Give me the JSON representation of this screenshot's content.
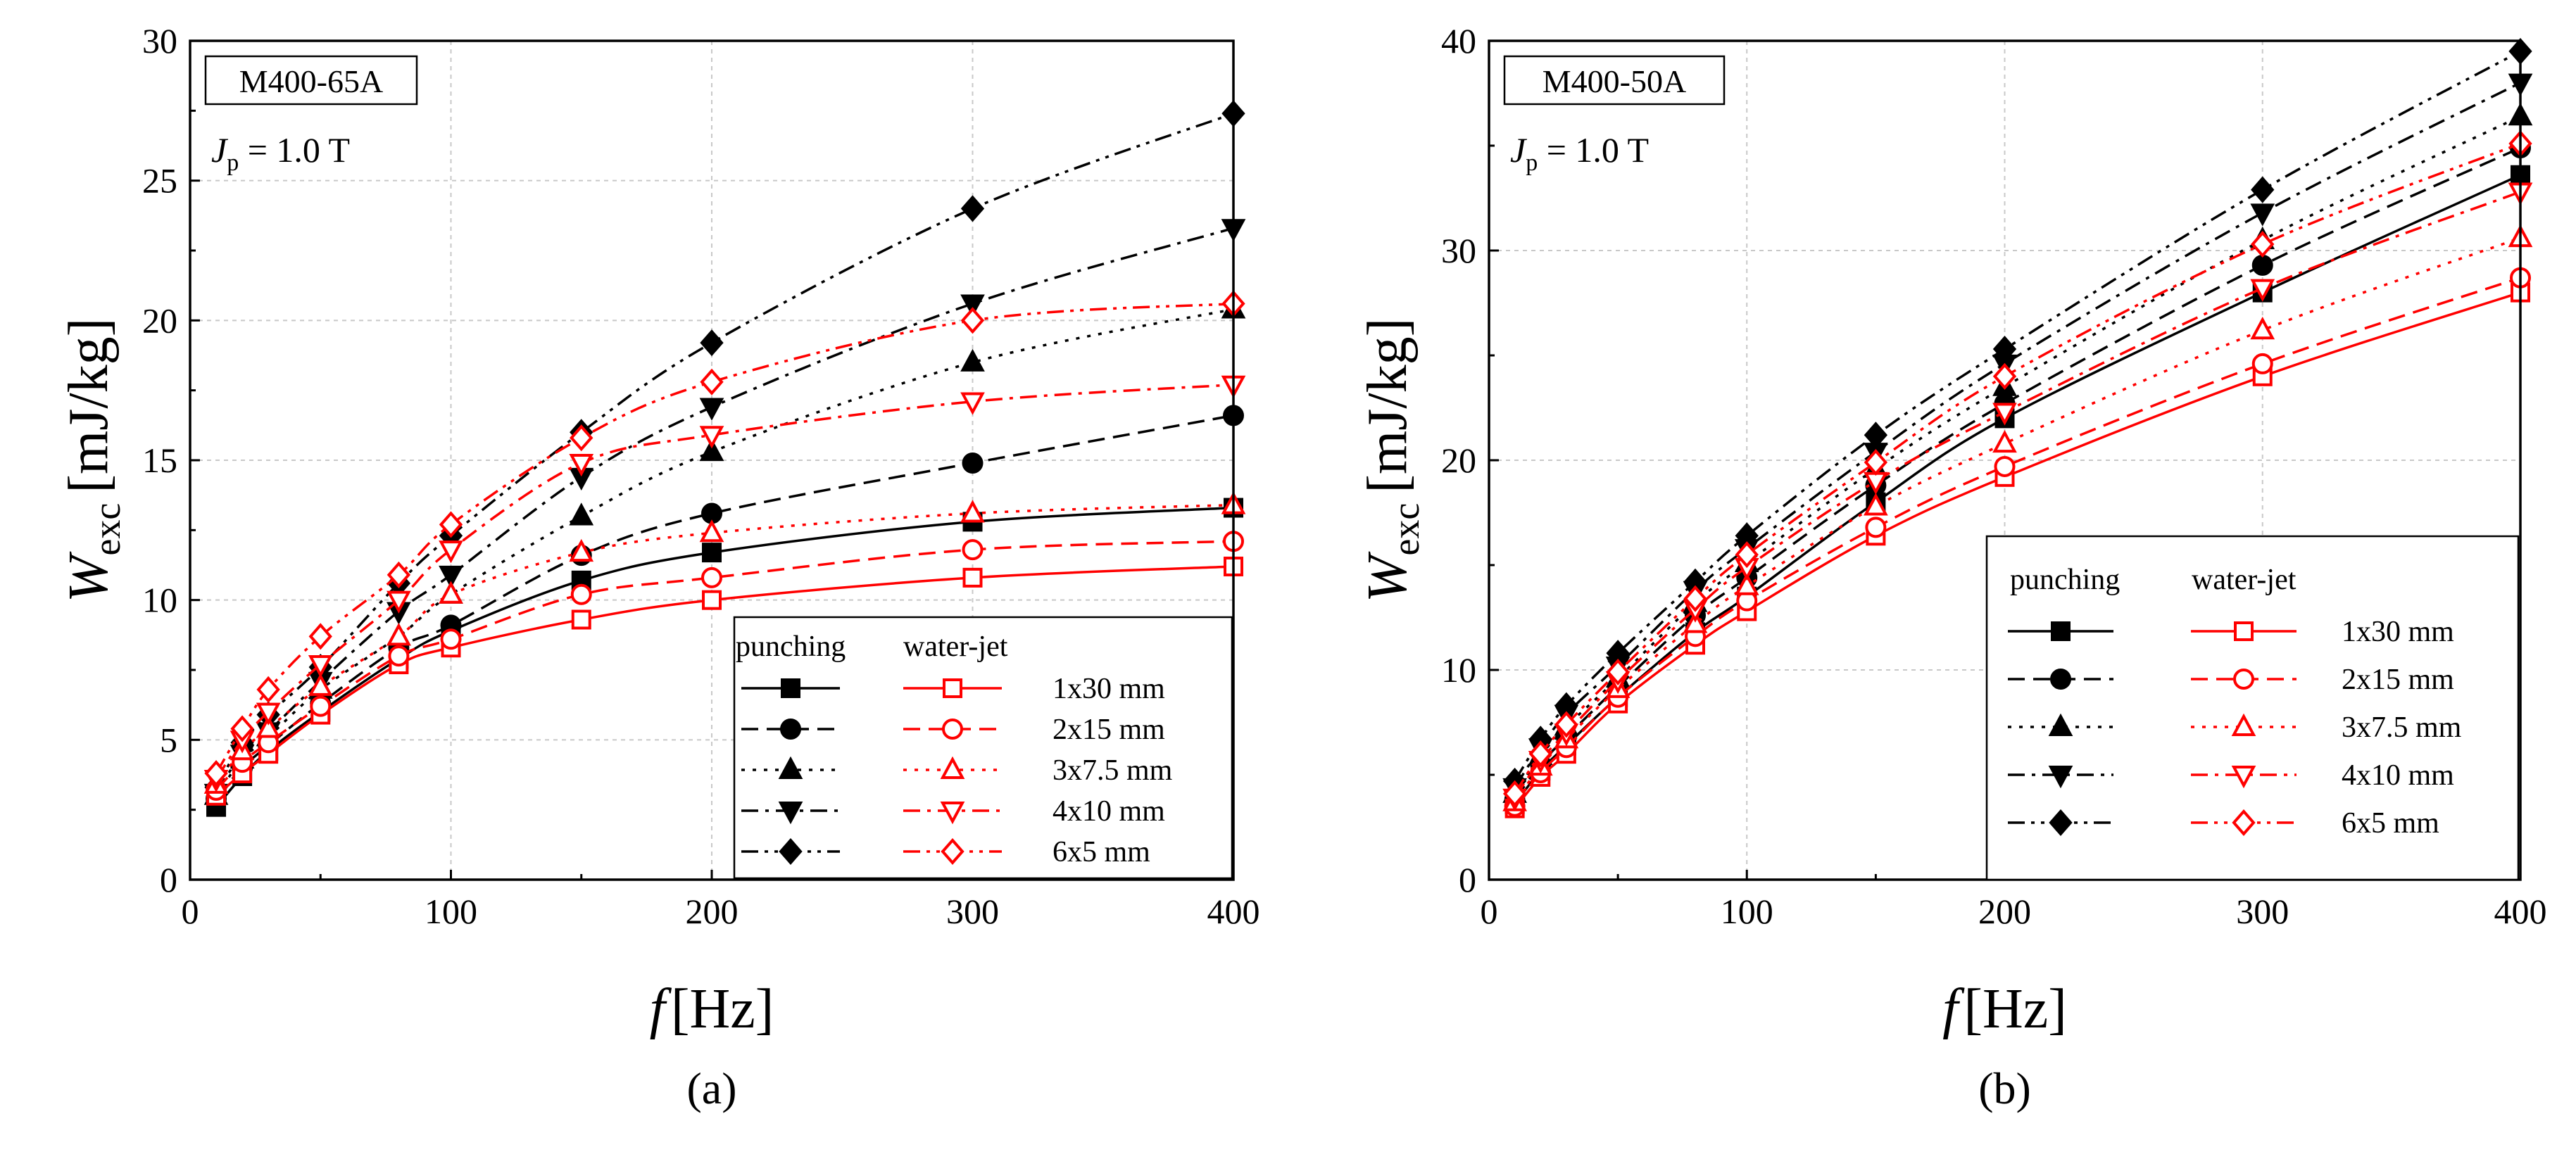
{
  "colors": {
    "punching": "#000000",
    "waterjet": "#ff0000",
    "grid": "#c8c8c8"
  },
  "legend": {
    "head_punching": "punching",
    "head_waterjet": "water-jet",
    "items": [
      {
        "label": "1x30 mm",
        "marker": "square",
        "dash": "solid"
      },
      {
        "label": "2x15 mm",
        "marker": "circle",
        "dash": "dash"
      },
      {
        "label": "3x7.5 mm",
        "marker": "triangle-up",
        "dash": "dot"
      },
      {
        "label": "4x10 mm",
        "marker": "triangle-down",
        "dash": "dashdot"
      },
      {
        "label": "6x5 mm",
        "marker": "diamond",
        "dash": "dashdotdot"
      }
    ]
  },
  "chart_data": [
    {
      "type": "line",
      "panel_label": "(a)",
      "material": "M400-65A",
      "jp_sym": "J",
      "jp_sub": "p",
      "jp_value": " = 1.0 T",
      "xlabel_sym": "f",
      "xlabel_unit": "[Hz]",
      "ylabel_sym": "W",
      "ylabel_sub": "exc",
      "ylabel_unit": "[mJ/kg]",
      "xlim": [
        0,
        400
      ],
      "ylim": [
        0,
        30
      ],
      "xticks": [
        0,
        100,
        200,
        300,
        400
      ],
      "yticks": [
        0,
        5,
        10,
        15,
        20,
        25,
        30
      ],
      "legend_position": "bottom-right",
      "x": [
        10,
        20,
        30,
        50,
        80,
        100,
        150,
        200,
        300,
        400
      ],
      "series": [
        {
          "name": "punching 1x30 mm",
          "method": "punching",
          "values": [
            2.6,
            3.7,
            4.6,
            6.0,
            7.9,
            8.9,
            10.7,
            11.7,
            12.8,
            13.3
          ]
        },
        {
          "name": "punching 2x15 mm",
          "method": "punching",
          "values": [
            2.9,
            4.0,
            4.8,
            6.3,
            8.3,
            9.1,
            11.6,
            13.1,
            14.9,
            16.6
          ]
        },
        {
          "name": "punching 3x7.5 mm",
          "method": "punching",
          "values": [
            3.0,
            4.3,
            5.1,
            6.8,
            8.7,
            10.2,
            13.0,
            15.3,
            18.5,
            20.4
          ]
        },
        {
          "name": "punching 4x10 mm",
          "method": "punching",
          "values": [
            3.1,
            4.5,
            5.3,
            7.1,
            9.6,
            10.9,
            14.4,
            16.9,
            20.6,
            23.3
          ]
        },
        {
          "name": "punching 6x5 mm",
          "method": "punching",
          "values": [
            3.3,
            4.9,
            5.9,
            7.6,
            10.6,
            12.3,
            16.0,
            19.2,
            24.0,
            27.4
          ]
        },
        {
          "name": "water-jet 1x30 mm",
          "method": "water-jet",
          "values": [
            3.0,
            3.8,
            4.5,
            5.9,
            7.7,
            8.3,
            9.3,
            10.0,
            10.8,
            11.2
          ]
        },
        {
          "name": "water-jet 2x15 mm",
          "method": "water-jet",
          "values": [
            3.2,
            4.2,
            4.9,
            6.2,
            8.0,
            8.6,
            10.2,
            10.8,
            11.8,
            12.1
          ]
        },
        {
          "name": "water-jet 3x7.5 mm",
          "method": "water-jet",
          "values": [
            3.4,
            4.6,
            5.4,
            6.9,
            8.7,
            10.2,
            11.7,
            12.4,
            13.1,
            13.4
          ]
        },
        {
          "name": "water-jet 4x10 mm",
          "method": "water-jet",
          "values": [
            3.6,
            5.0,
            6.0,
            7.7,
            10.0,
            11.8,
            14.9,
            15.9,
            17.1,
            17.7
          ]
        },
        {
          "name": "water-jet 6x5 mm",
          "method": "water-jet",
          "values": [
            3.8,
            5.4,
            6.8,
            8.7,
            10.9,
            12.7,
            15.8,
            17.8,
            20.0,
            20.6
          ]
        }
      ]
    },
    {
      "type": "line",
      "panel_label": "(b)",
      "material": "M400-50A",
      "jp_sym": "J",
      "jp_sub": "p",
      "jp_value": " = 1.0 T",
      "xlabel_sym": "f",
      "xlabel_unit": "[Hz]",
      "ylabel_sym": "W",
      "ylabel_sub": "exc",
      "ylabel_unit": "[mJ/kg]",
      "xlim": [
        0,
        400
      ],
      "ylim": [
        0,
        40
      ],
      "xticks": [
        0,
        100,
        200,
        300,
        400
      ],
      "yticks": [
        0,
        10,
        20,
        30,
        40
      ],
      "legend_position": "bottom-right",
      "x": [
        10,
        20,
        30,
        50,
        80,
        100,
        150,
        200,
        300,
        400
      ],
      "series": [
        {
          "name": "punching 1x30 mm",
          "method": "punching",
          "values": [
            3.6,
            5.2,
            6.4,
            8.7,
            11.8,
            13.5,
            18.0,
            22.0,
            28.0,
            33.6
          ]
        },
        {
          "name": "punching 2x15 mm",
          "method": "punching",
          "values": [
            3.8,
            5.5,
            6.8,
            9.2,
            12.6,
            14.4,
            18.8,
            22.7,
            29.3,
            34.9
          ]
        },
        {
          "name": "punching 3x7.5 mm",
          "method": "punching",
          "values": [
            4.1,
            5.9,
            7.3,
            9.6,
            13.2,
            15.1,
            19.6,
            23.5,
            30.5,
            36.4
          ]
        },
        {
          "name": "punching 4x10 mm",
          "method": "punching",
          "values": [
            4.4,
            6.3,
            7.9,
            10.2,
            13.8,
            15.8,
            20.4,
            24.6,
            31.8,
            38.0
          ]
        },
        {
          "name": "punching 6x5 mm",
          "method": "punching",
          "values": [
            4.7,
            6.7,
            8.3,
            10.8,
            14.2,
            16.4,
            21.2,
            25.3,
            32.9,
            39.5
          ]
        },
        {
          "name": "water-jet 1x30 mm",
          "method": "water-jet",
          "values": [
            3.4,
            4.9,
            6.0,
            8.4,
            11.2,
            12.8,
            16.4,
            19.2,
            24.0,
            28.0
          ]
        },
        {
          "name": "water-jet 2x15 mm",
          "method": "water-jet",
          "values": [
            3.5,
            5.1,
            6.3,
            8.7,
            11.6,
            13.3,
            16.8,
            19.7,
            24.6,
            28.7
          ]
        },
        {
          "name": "water-jet 3x7.5 mm",
          "method": "water-jet",
          "values": [
            3.7,
            5.4,
            6.7,
            9.1,
            12.2,
            14.0,
            17.8,
            20.8,
            26.2,
            30.6
          ]
        },
        {
          "name": "water-jet 4x10 mm",
          "method": "water-jet",
          "values": [
            3.9,
            5.7,
            7.0,
            9.5,
            12.9,
            14.9,
            19.0,
            22.3,
            28.2,
            32.8
          ]
        },
        {
          "name": "water-jet 6x5 mm",
          "method": "water-jet",
          "values": [
            4.1,
            6.0,
            7.4,
            9.9,
            13.4,
            15.5,
            19.9,
            24.0,
            30.3,
            35.1
          ]
        }
      ]
    }
  ]
}
